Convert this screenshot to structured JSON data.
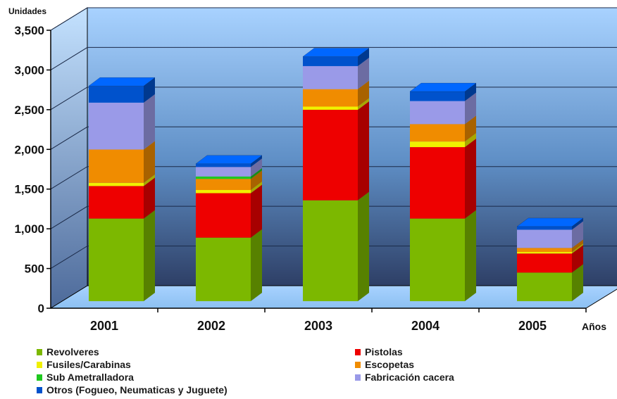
{
  "chart_data": {
    "type": "bar",
    "stacked": true,
    "three_d": true,
    "ylabel": "Unidades",
    "xlabel": "Años",
    "ylim": [
      0,
      3500
    ],
    "yticks": [
      "0",
      "500",
      "1,000",
      "1,500",
      "2,000",
      "2,500",
      "3,000",
      "3,500"
    ],
    "ytick_values": [
      0,
      500,
      1000,
      1500,
      2000,
      2500,
      3000,
      3500
    ],
    "categories": [
      "2001",
      "2002",
      "2003",
      "2004",
      "2005"
    ],
    "grid": true,
    "legend_position": "bottom",
    "series": [
      {
        "name": "Revolveres",
        "color": "#7cb800",
        "values": [
          1040,
          800,
          1270,
          1040,
          360
        ]
      },
      {
        "name": "Pistolas",
        "color": "#ee0000",
        "values": [
          410,
          560,
          1140,
          900,
          240
        ]
      },
      {
        "name": "Fusiles/Carabinas",
        "color": "#f0f000",
        "values": [
          40,
          40,
          40,
          70,
          20
        ]
      },
      {
        "name": "Escopetas",
        "color": "#f08c00",
        "values": [
          420,
          140,
          220,
          220,
          50
        ]
      },
      {
        "name": "Sub Ametralladora",
        "color": "#1fc81f",
        "values": [
          0,
          30,
          0,
          0,
          0
        ]
      },
      {
        "name": "Fabricación cacera",
        "color": "#9a9ae8",
        "values": [
          590,
          120,
          290,
          290,
          230
        ]
      },
      {
        "name": "Otros (Fogueo, Neumaticas y Juguete)",
        "color": "#0052cc",
        "values": [
          210,
          40,
          120,
          120,
          40
        ]
      }
    ]
  }
}
